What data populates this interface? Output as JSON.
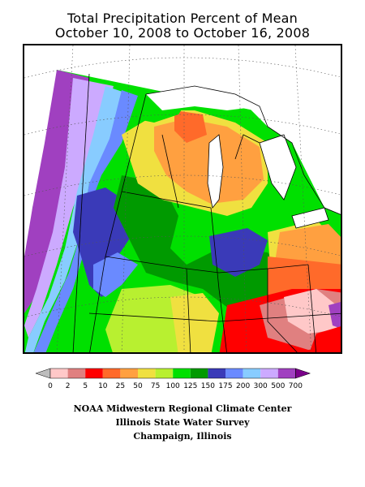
{
  "title": {
    "line1": "Total Precipitation Percent of Mean",
    "line2": "October 10, 2008 to October 16, 2008"
  },
  "legend": {
    "tick_labels": [
      "0",
      "2",
      "5",
      "10",
      "25",
      "50",
      "75",
      "100",
      "125",
      "150",
      "175",
      "200",
      "300",
      "500",
      "700"
    ],
    "colors": [
      "#bdbdbd",
      "#ffc8c8",
      "#e08080",
      "#ff0000",
      "#ff6a2a",
      "#ffa040",
      "#f0e040",
      "#b8f030",
      "#00e000",
      "#009a00",
      "#3a3ab8",
      "#6a8aff",
      "#88ccff",
      "#ccaaff",
      "#a040c0",
      "#7a008a"
    ]
  },
  "credits": {
    "line1": "NOAA Midwestern Regional Climate Center",
    "line2": "Illinois State Water Survey",
    "line3": "Champaign, Illinois"
  }
}
